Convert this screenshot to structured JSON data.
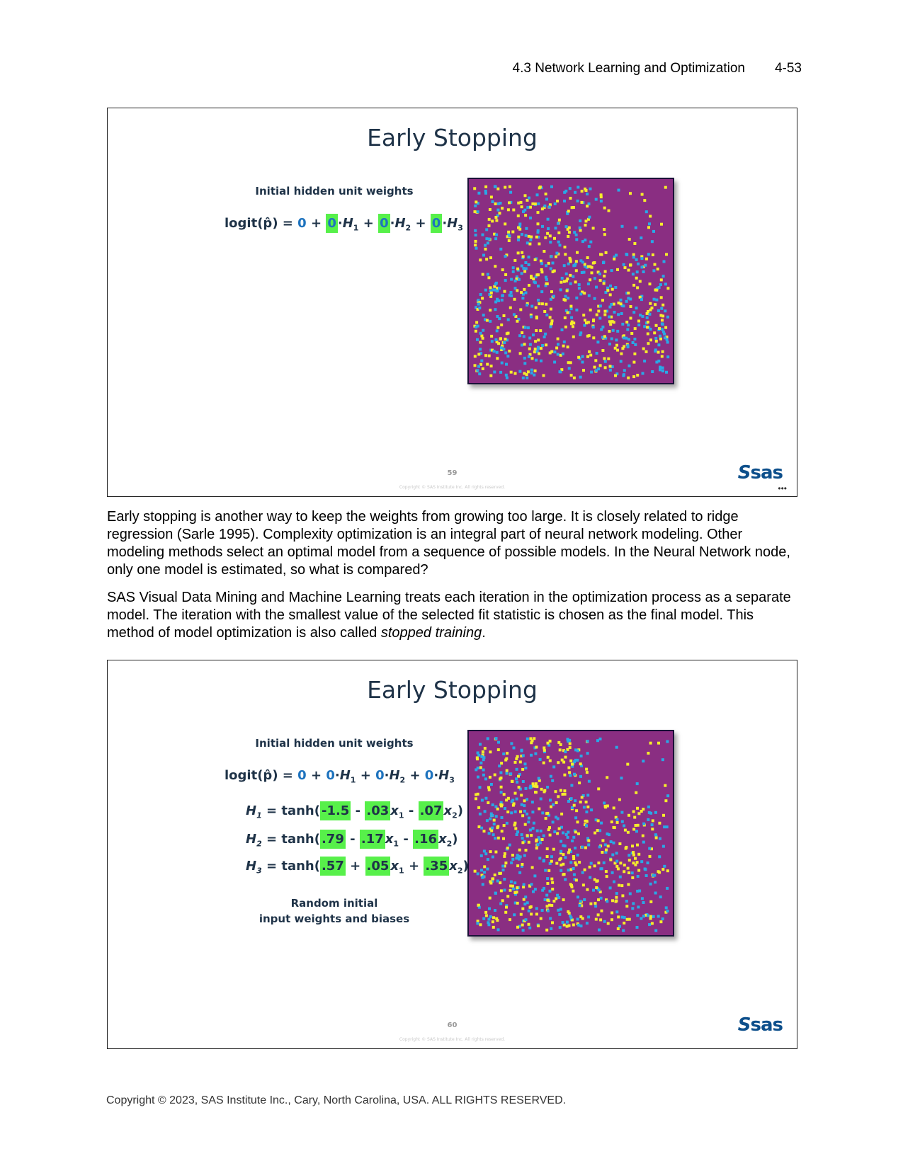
{
  "header": {
    "section": "4.3 Network Learning and Optimization",
    "page": "4-53"
  },
  "slide1": {
    "title": "Early Stopping",
    "weights_caption": "Initial hidden unit weights",
    "slide_number": "59",
    "copyright": "Copyright © SAS Institute Inc. All rights reserved.",
    "logo": "sas"
  },
  "slide2": {
    "title": "Early Stopping",
    "weights_caption": "Initial hidden unit weights",
    "h_equations": [
      {
        "name": "H1",
        "coef": [
          "-1.5",
          ".03",
          ".07"
        ],
        "ops": [
          "-",
          "-"
        ]
      },
      {
        "name": "H2",
        "coef": [
          ".79",
          ".17",
          ".16"
        ],
        "ops": [
          "-",
          "-"
        ]
      },
      {
        "name": "H3",
        "coef": [
          ".57",
          ".05",
          ".35"
        ],
        "ops": [
          "+",
          "+"
        ]
      }
    ],
    "random_caption_line1": "Random initial",
    "random_caption_line2": "input weights and biases",
    "slide_number": "60",
    "copyright": "Copyright © SAS Institute Inc. All rights reserved.",
    "logo": "sas"
  },
  "logit_equation": {
    "lhs": "logit(",
    "p_hat": "p̂",
    "rhs_open": ") =",
    "intercept": "0",
    "weights": [
      "0",
      "0",
      "0"
    ],
    "hidden": [
      "H",
      "H",
      "H"
    ],
    "subs": [
      "1",
      "2",
      "3"
    ]
  },
  "paragraph1": "Early stopping is another way to keep the weights from growing too large. It is closely related to ridge regression (Sarle 1995). Complexity optimization is an integral part of neural network modeling. Other modeling methods select an optimal model from a sequence of possible models. In the Neural Network node, only one model is estimated, so what is compared?",
  "paragraph2_main": "SAS Visual Data Mining and Machine Learning treats each iteration in the optimization process as a separate model. The iteration with the smallest value of the selected fit statistic is chosen as the final model. This method of model optimization is also called ",
  "paragraph2_em": "stopped training",
  "paragraph2_end": ".",
  "footer": "Copyright © 2023, SAS Institute Inc., Cary, North Carolina, USA. ALL RIGHTS RESERVED.",
  "colors": {
    "plot_bg": "#8a2e82",
    "yellow": "#f6ec2c",
    "blue": "#2aa8e6",
    "highlight": "#57f04a",
    "title": "#1f3348"
  },
  "icons": {
    "scatter": "scatter-plot-image",
    "logo": "sas-logo"
  }
}
